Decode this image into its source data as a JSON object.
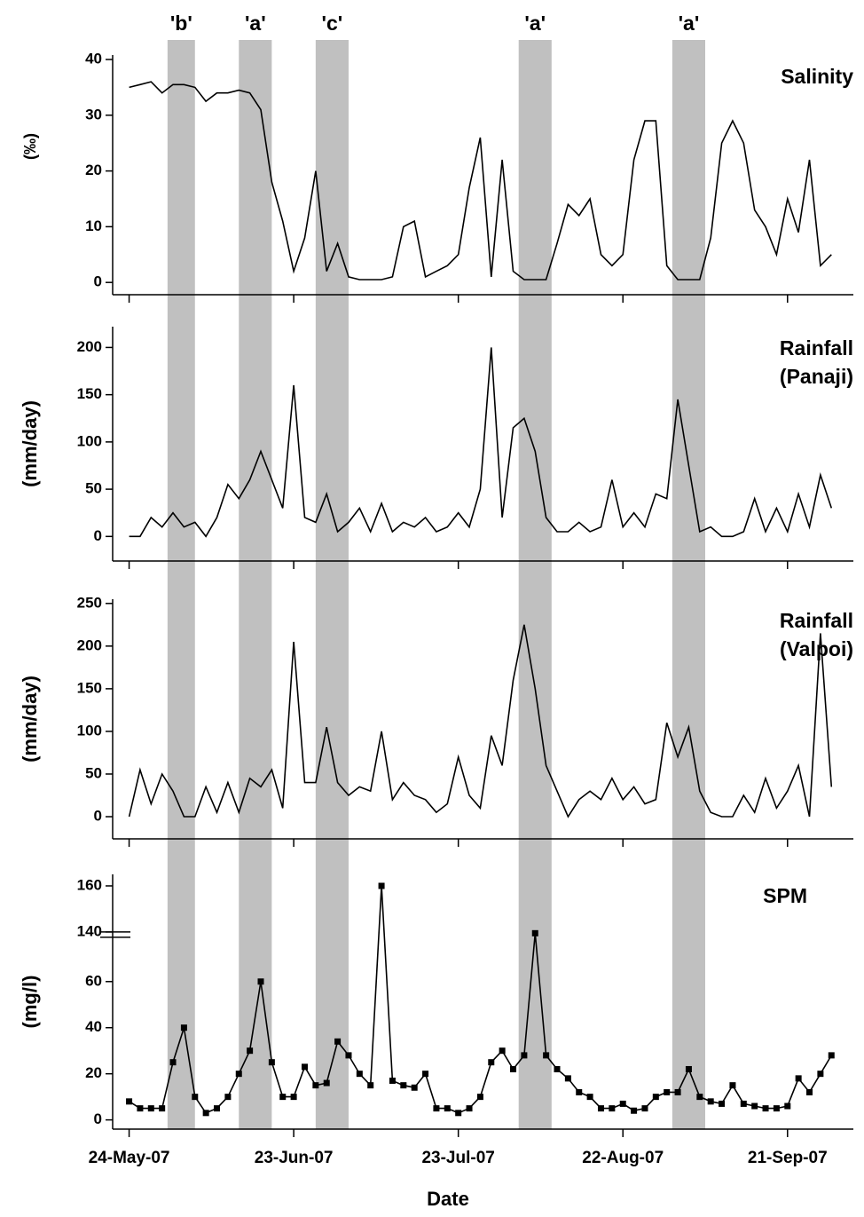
{
  "chart_data": {
    "type": "line",
    "x_label": "Date",
    "x": [
      "2007-05-24",
      "2007-05-26",
      "2007-05-28",
      "2007-05-30",
      "2007-06-01",
      "2007-06-03",
      "2007-06-05",
      "2007-06-07",
      "2007-06-09",
      "2007-06-11",
      "2007-06-13",
      "2007-06-15",
      "2007-06-17",
      "2007-06-19",
      "2007-06-21",
      "2007-06-23",
      "2007-06-25",
      "2007-06-27",
      "2007-06-29",
      "2007-07-01",
      "2007-07-03",
      "2007-07-05",
      "2007-07-07",
      "2007-07-09",
      "2007-07-11",
      "2007-07-13",
      "2007-07-15",
      "2007-07-17",
      "2007-07-19",
      "2007-07-21",
      "2007-07-23",
      "2007-07-25",
      "2007-07-27",
      "2007-07-29",
      "2007-07-31",
      "2007-08-02",
      "2007-08-04",
      "2007-08-06",
      "2007-08-08",
      "2007-08-10",
      "2007-08-12",
      "2007-08-14",
      "2007-08-16",
      "2007-08-18",
      "2007-08-20",
      "2007-08-22",
      "2007-08-24",
      "2007-08-26",
      "2007-08-28",
      "2007-08-30",
      "2007-09-01",
      "2007-09-03",
      "2007-09-05",
      "2007-09-07",
      "2007-09-09",
      "2007-09-11",
      "2007-09-13",
      "2007-09-15",
      "2007-09-17",
      "2007-09-19",
      "2007-09-21",
      "2007-09-23",
      "2007-09-25",
      "2007-09-27",
      "2007-09-29"
    ],
    "xlim": [
      "2007-05-21",
      "2007-10-03"
    ],
    "xticks": [
      {
        "value": "2007-05-24",
        "label": "24-May-07"
      },
      {
        "value": "2007-06-23",
        "label": "23-Jun-07"
      },
      {
        "value": "2007-07-23",
        "label": "23-Jul-07"
      },
      {
        "value": "2007-08-22",
        "label": "22-Aug-07"
      },
      {
        "value": "2007-09-21",
        "label": "21-Sep-07"
      }
    ],
    "bands": [
      {
        "start": "2007-05-31",
        "end": "2007-06-05",
        "label": "'b'"
      },
      {
        "start": "2007-06-13",
        "end": "2007-06-19",
        "label": "'a'"
      },
      {
        "start": "2007-06-27",
        "end": "2007-07-03",
        "label": "'c'"
      },
      {
        "start": "2007-08-03",
        "end": "2007-08-09",
        "label": "'a'"
      },
      {
        "start": "2007-08-31",
        "end": "2007-09-06",
        "label": "'a'"
      }
    ],
    "band_color": "#c0c0c0",
    "panels": [
      {
        "title": "Salinity",
        "ylabel": "(‰)",
        "color": "#000000",
        "ylim": [
          -2.2,
          40.8
        ],
        "yticks": [
          0,
          10,
          20,
          30,
          40
        ],
        "values": [
          35,
          35.5,
          36,
          34,
          35.5,
          35.5,
          35,
          32.5,
          34,
          34,
          34.5,
          34,
          31,
          18,
          11,
          2,
          8,
          20,
          2,
          7,
          1,
          0.5,
          0.5,
          0.5,
          1,
          10,
          11,
          1,
          2,
          3,
          5,
          17,
          26,
          1,
          22,
          2,
          0.5,
          0.5,
          0.5,
          7,
          14,
          12,
          15,
          5,
          3,
          5,
          22,
          29,
          29,
          3,
          0.5,
          0.5,
          0.5,
          8,
          25,
          29,
          25,
          13,
          10,
          5,
          15,
          9,
          22,
          3,
          5
        ]
      },
      {
        "title": "Rainfall",
        "subtitle": "(Panaji)",
        "ylabel": "(mm/day)",
        "color": "#000000",
        "ylim": [
          -26,
          222
        ],
        "yticks": [
          0,
          50,
          100,
          150,
          200
        ],
        "values": [
          0,
          0,
          20,
          10,
          25,
          10,
          15,
          0,
          20,
          55,
          40,
          60,
          90,
          60,
          30,
          160,
          20,
          15,
          45,
          5,
          15,
          30,
          5,
          35,
          5,
          15,
          10,
          20,
          5,
          10,
          25,
          10,
          50,
          200,
          20,
          115,
          125,
          90,
          20,
          5,
          5,
          15,
          5,
          10,
          60,
          10,
          25,
          10,
          45,
          40,
          145,
          75,
          5,
          10,
          0,
          0,
          5,
          40,
          5,
          30,
          5,
          45,
          10,
          65,
          30
        ]
      },
      {
        "title": "Rainfall",
        "subtitle": "(Valpoi)",
        "ylabel": "(mm/day)",
        "color": "#000000",
        "ylim": [
          -26,
          255
        ],
        "yticks": [
          0,
          50,
          100,
          150,
          200,
          250
        ],
        "values": [
          0,
          55,
          15,
          50,
          30,
          0,
          0,
          35,
          5,
          40,
          5,
          45,
          35,
          55,
          10,
          205,
          40,
          40,
          105,
          40,
          25,
          35,
          30,
          100,
          20,
          40,
          25,
          20,
          5,
          15,
          70,
          25,
          10,
          95,
          60,
          160,
          225,
          150,
          60,
          30,
          0,
          20,
          30,
          20,
          45,
          20,
          35,
          15,
          20,
          110,
          70,
          105,
          30,
          5,
          0,
          0,
          25,
          5,
          45,
          10,
          30,
          60,
          0,
          215,
          35
        ]
      },
      {
        "title": "SPM",
        "ylabel": "(mg/l)",
        "color": "#000000",
        "marker": "square",
        "ylim": [
          -4,
          165
        ],
        "yticks": [
          0,
          20,
          40,
          60,
          140,
          160
        ],
        "axis_break": [
          60,
          140
        ],
        "values": [
          8,
          5,
          5,
          5,
          25,
          40,
          10,
          3,
          5,
          10,
          20,
          30,
          60,
          25,
          10,
          10,
          23,
          15,
          16,
          34,
          28,
          20,
          15,
          160,
          17,
          15,
          14,
          20,
          5,
          5,
          3,
          5,
          10,
          25,
          30,
          22,
          28,
          138,
          28,
          22,
          18,
          12,
          10,
          5,
          5,
          7,
          4,
          5,
          10,
          12,
          12,
          22,
          10,
          8,
          7,
          15,
          7,
          6,
          5,
          5,
          6,
          18,
          12,
          20,
          28
        ]
      }
    ]
  }
}
